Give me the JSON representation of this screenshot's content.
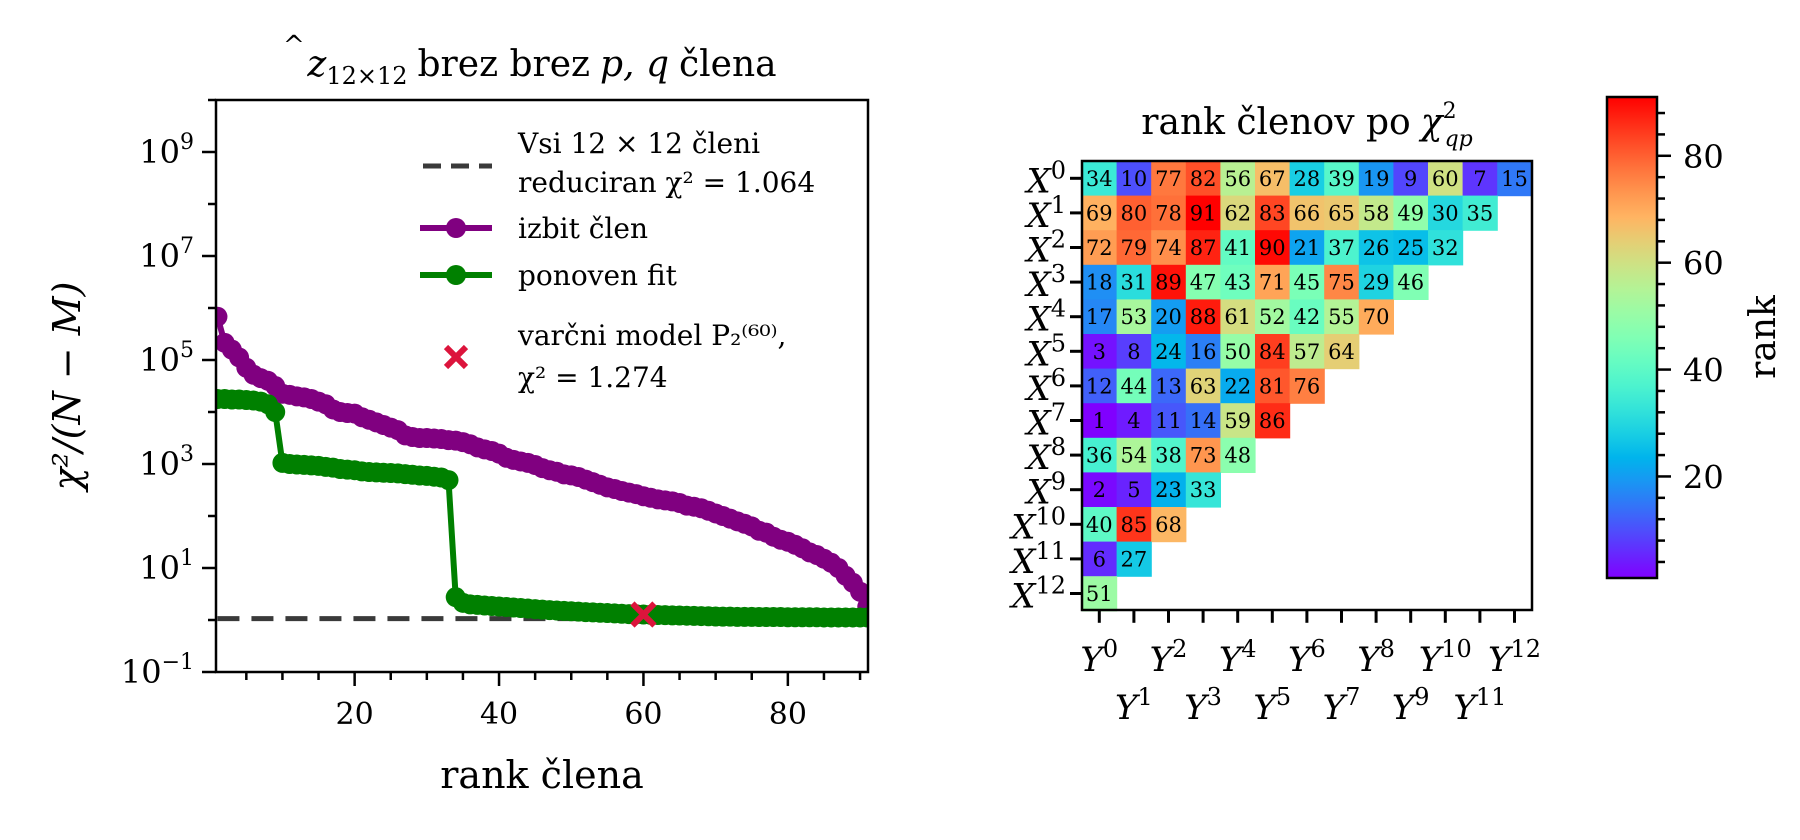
{
  "chart_data": [
    {
      "type": "line",
      "title": "ẑ₁₂ₓ₁₂ brez brez p, q člena",
      "title_parts": {
        "hat_var": "z",
        "subscript": "12×12",
        "text1": "brez brez",
        "pq": "p, q",
        "text2": "člena"
      },
      "xlabel": "rank člena",
      "ylabel": "χ²/(N − M)",
      "yscale": "log",
      "xlim": [
        0.8,
        91.1
      ],
      "ylim": [
        0.1,
        10000000000.0
      ],
      "xticks": [
        20,
        40,
        60,
        80
      ],
      "xtick_labels": [
        "20",
        "40",
        "60",
        "80"
      ],
      "xminor_step": 5,
      "yticks": [
        {
          "value": 0.1,
          "base": "10",
          "exp": "−1"
        },
        {
          "value": 10,
          "base": "10",
          "exp": "1"
        },
        {
          "value": 1000,
          "base": "10",
          "exp": "3"
        },
        {
          "value": 100000,
          "base": "10",
          "exp": "5"
        },
        {
          "value": 10000000,
          "base": "10",
          "exp": "7"
        },
        {
          "value": 1000000000,
          "base": "10",
          "exp": "9"
        }
      ],
      "grid": false,
      "legend_position": "top-right",
      "legend": [
        {
          "type": "dashed-line",
          "color": "#3a3a3a",
          "lines": [
            "Vsi 12 × 12 členi",
            "reduciran χ² = 1.064"
          ]
        },
        {
          "type": "line-marker",
          "color": "#800080",
          "lines": [
            "izbit člen"
          ]
        },
        {
          "type": "line-marker",
          "color": "#008000",
          "lines": [
            "ponoven fit"
          ]
        },
        {
          "type": "x-marker",
          "color": "#dc143c",
          "lines": [
            "varčni model P₂⁽⁶⁰⁾,",
            "χ² = 1.274"
          ]
        }
      ],
      "reference_line": {
        "name": "Vsi 12 × 12 členi reduciran χ²",
        "value": 1.064,
        "x_range": [
          1,
          91
        ],
        "color": "#3a3a3a"
      },
      "highlight_point": {
        "name": "varčni model P2(60)",
        "x": 60,
        "y": 1.274,
        "color": "#dc143c"
      },
      "series": [
        {
          "name": "izbit člen",
          "color": "#800080",
          "x_start": 1,
          "values": [
            680000,
            214000,
            158000,
            112000,
            71000,
            52000,
            44700,
            39800,
            31600,
            22400,
            21400,
            20000,
            19100,
            17800,
            15800,
            14100,
            11200,
            10000,
            9550,
            9330,
            7940,
            7080,
            6310,
            5620,
            5010,
            4470,
            3550,
            3310,
            3160,
            3160,
            3090,
            3020,
            2880,
            2820,
            2630,
            2400,
            2090,
            1910,
            1780,
            1580,
            1320,
            1200,
            1120,
            1050,
            955,
            832,
            759,
            708,
            631,
            603,
            562,
            501,
            447,
            398,
            355,
            331,
            302,
            282,
            263,
            240,
            224,
            209,
            200,
            191,
            178,
            158,
            151,
            141,
            126,
            112,
            100,
            89,
            79,
            71,
            63,
            52,
            48,
            40,
            35,
            32,
            28,
            24,
            20,
            17.8,
            15.1,
            12.6,
            10,
            7.1,
            5.2,
            3.5,
            1.8
          ]
        },
        {
          "name": "ponoven fit",
          "color": "#008000",
          "x_start": 1,
          "values": [
            17800,
            17800,
            17400,
            17400,
            17000,
            16600,
            15800,
            14100,
            10000,
            1050,
            1000,
            980,
            960,
            940,
            920,
            880,
            850,
            800,
            780,
            760,
            720,
            700,
            690,
            680,
            670,
            660,
            640,
            620,
            600,
            590,
            570,
            550,
            490,
            2.75,
            2.14,
            2.0,
            1.95,
            1.9,
            1.86,
            1.82,
            1.78,
            1.74,
            1.7,
            1.66,
            1.62,
            1.58,
            1.55,
            1.52,
            1.5,
            1.47,
            1.45,
            1.42,
            1.4,
            1.38,
            1.36,
            1.34,
            1.32,
            1.3,
            1.29,
            1.274,
            1.26,
            1.25,
            1.24,
            1.23,
            1.22,
            1.21,
            1.2,
            1.19,
            1.18,
            1.17,
            1.16,
            1.16,
            1.15,
            1.15,
            1.15,
            1.14,
            1.14,
            1.14,
            1.14,
            1.13,
            1.13,
            1.13,
            1.13,
            1.13,
            1.12,
            1.12,
            1.12,
            1.12,
            1.12,
            1.12,
            1.12
          ]
        }
      ]
    },
    {
      "type": "heatmap",
      "title": "rank členov po χ²_qp",
      "title_parts": {
        "text": "rank členov po",
        "chi": "χ",
        "sup": "2",
        "sub": "qp"
      },
      "row_labels": [
        {
          "base": "X",
          "exp": "0"
        },
        {
          "base": "X",
          "exp": "1"
        },
        {
          "base": "X",
          "exp": "2"
        },
        {
          "base": "X",
          "exp": "3"
        },
        {
          "base": "X",
          "exp": "4"
        },
        {
          "base": "X",
          "exp": "5"
        },
        {
          "base": "X",
          "exp": "6"
        },
        {
          "base": "X",
          "exp": "7"
        },
        {
          "base": "X",
          "exp": "8"
        },
        {
          "base": "X",
          "exp": "9"
        },
        {
          "base": "X",
          "exp": "10"
        },
        {
          "base": "X",
          "exp": "11"
        },
        {
          "base": "X",
          "exp": "12"
        }
      ],
      "col_labels": [
        {
          "base": "Y",
          "exp": "0"
        },
        {
          "base": "Y",
          "exp": "1"
        },
        {
          "base": "Y",
          "exp": "2"
        },
        {
          "base": "Y",
          "exp": "3"
        },
        {
          "base": "Y",
          "exp": "4"
        },
        {
          "base": "Y",
          "exp": "5"
        },
        {
          "base": "Y",
          "exp": "6"
        },
        {
          "base": "Y",
          "exp": "7"
        },
        {
          "base": "Y",
          "exp": "8"
        },
        {
          "base": "Y",
          "exp": "9"
        },
        {
          "base": "Y",
          "exp": "10"
        },
        {
          "base": "Y",
          "exp": "11"
        },
        {
          "base": "Y",
          "exp": "12"
        }
      ],
      "values": [
        [
          34,
          10,
          77,
          82,
          56,
          67,
          28,
          39,
          19,
          9,
          60,
          7,
          15
        ],
        [
          69,
          80,
          78,
          91,
          62,
          83,
          66,
          65,
          58,
          49,
          30,
          35
        ],
        [
          72,
          79,
          74,
          87,
          41,
          90,
          21,
          37,
          26,
          25,
          32
        ],
        [
          18,
          31,
          89,
          47,
          43,
          71,
          45,
          75,
          29,
          46
        ],
        [
          17,
          53,
          20,
          88,
          61,
          52,
          42,
          55,
          70
        ],
        [
          3,
          8,
          24,
          16,
          50,
          84,
          57,
          64
        ],
        [
          12,
          44,
          13,
          63,
          22,
          81,
          76
        ],
        [
          1,
          4,
          11,
          14,
          59,
          86
        ],
        [
          36,
          54,
          38,
          73,
          48
        ],
        [
          2,
          5,
          23,
          33
        ],
        [
          40,
          85,
          68
        ],
        [
          6,
          27
        ],
        [
          51
        ]
      ],
      "colormap": "rainbow",
      "colorbar": {
        "label": "rank",
        "range": [
          1,
          91
        ],
        "ticks": [
          20,
          40,
          60,
          80
        ],
        "tick_labels": [
          "20",
          "40",
          "60",
          "80"
        ],
        "minor_step": 4
      }
    }
  ]
}
